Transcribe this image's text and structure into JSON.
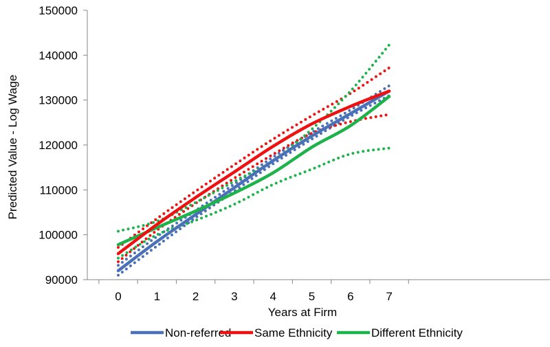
{
  "chart_data": {
    "type": "line",
    "xlabel": "Years at Firm",
    "ylabel": "Predicted Value - Log Wage",
    "xlim": [
      0,
      7
    ],
    "ylim": [
      90000,
      150000
    ],
    "xticks": [
      "0",
      "1",
      "2",
      "3",
      "4",
      "5",
      "6",
      "7"
    ],
    "yticks": [
      "90000",
      "100000",
      "110000",
      "120000",
      "130000",
      "140000",
      "150000"
    ],
    "grid": false,
    "legend": "bottom",
    "x": [
      0,
      1,
      2,
      3,
      4,
      5,
      6,
      7
    ],
    "series": [
      {
        "name": "Non-referred",
        "color": "#4a70b5",
        "values": [
          92000,
          98500,
          104500,
          110500,
          116500,
          122000,
          127000,
          132000
        ],
        "lower": [
          91000,
          97500,
          103800,
          109700,
          115800,
          121300,
          126400,
          131000
        ],
        "upper": [
          93200,
          99600,
          105400,
          111300,
          117300,
          122800,
          127800,
          133200
        ]
      },
      {
        "name": "Same Ethnicity",
        "color": "#ee1111",
        "values": [
          95800,
          102300,
          108300,
          114000,
          119700,
          124700,
          128600,
          132000
        ],
        "lower": [
          94000,
          101000,
          107000,
          112600,
          117900,
          122600,
          125200,
          126800
        ],
        "upper": [
          97200,
          103600,
          109700,
          115600,
          121300,
          126500,
          131500,
          137200
        ]
      },
      {
        "name": "Different Ethnicity",
        "color": "#1db24a",
        "values": [
          97800,
          101600,
          105300,
          109300,
          113800,
          119500,
          124300,
          130800
        ],
        "lower": [
          94800,
          100000,
          103200,
          106800,
          111200,
          114600,
          118000,
          119300
        ],
        "upper": [
          100800,
          103000,
          107200,
          111900,
          116500,
          123500,
          132000,
          142300
        ]
      }
    ]
  }
}
